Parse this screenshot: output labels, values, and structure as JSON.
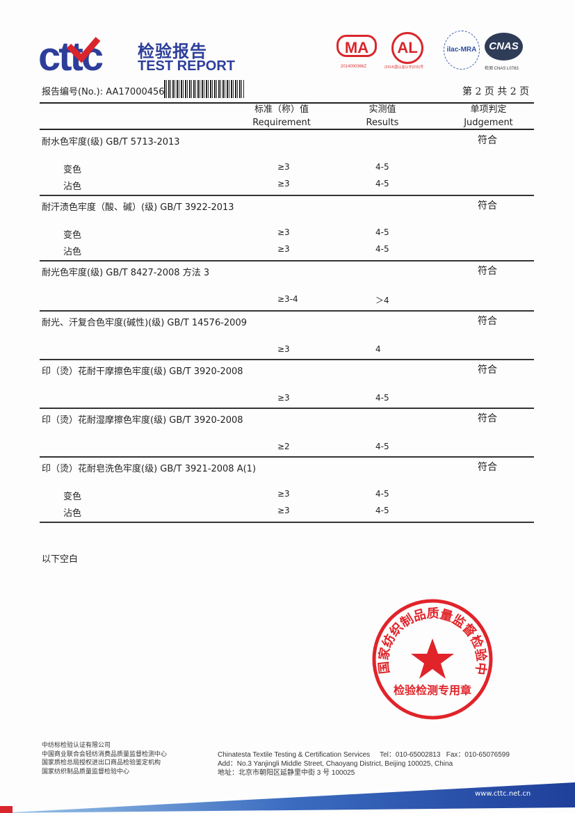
{
  "header": {
    "logo": "cttc",
    "logo_cn": "检验报告",
    "logo_en": "TEST REPORT",
    "certs": [
      {
        "mark": "MA",
        "code": "2014000366Z"
      },
      {
        "mark": "AL",
        "code": "(2014)国认监认字(016)号"
      },
      {
        "mark": "ilac-MRA",
        "code": ""
      },
      {
        "mark": "CNAS",
        "code": "检测 CNAS L0783"
      }
    ],
    "report_no_label": "报告编号(No.): AA17000456",
    "page_info": "第 2 页   共 2 页"
  },
  "columns": {
    "requirement_cn": "标准（称）值",
    "requirement_en": "Requirement",
    "results_cn": "实测值",
    "results_en": "Results",
    "judgement_cn": "单项判定",
    "judgement_en": "Judgement"
  },
  "sections": [
    {
      "title": "耐水色牢度(级)    GB/T 5713-2013",
      "judgement": "符合",
      "rows": [
        {
          "label": "变色",
          "req": "≥3",
          "res": "4-5"
        },
        {
          "label": "沾色",
          "req": "≥3",
          "res": "4-5"
        }
      ]
    },
    {
      "title": "耐汗渍色牢度（酸、碱）(级)    GB/T 3922-2013",
      "judgement": "符合",
      "rows": [
        {
          "label": "变色",
          "req": "≥3",
          "res": "4-5"
        },
        {
          "label": "沾色",
          "req": "≥3",
          "res": "4-5"
        }
      ]
    },
    {
      "title": "耐光色牢度(级)    GB/T 8427-2008  方法 3",
      "judgement": "符合",
      "rows": [
        {
          "label": "",
          "req": "≥3-4",
          "res": "＞4"
        }
      ]
    },
    {
      "title": "耐光、汗复合色牢度(碱性)(级)    GB/T 14576-2009",
      "judgement": "符合",
      "rows": [
        {
          "label": "",
          "req": "≥3",
          "res": "4"
        }
      ]
    },
    {
      "title": "印（烫）花耐干摩擦色牢度(级)    GB/T 3920-2008",
      "judgement": "符合",
      "rows": [
        {
          "label": "",
          "req": "≥3",
          "res": "4-5"
        }
      ]
    },
    {
      "title": "印（烫）花耐湿摩擦色牢度(级)    GB/T 3920-2008",
      "judgement": "符合",
      "rows": [
        {
          "label": "",
          "req": "≥2",
          "res": "4-5"
        }
      ]
    },
    {
      "title": "印（烫）花耐皂洗色牢度(级)    GB/T 3921-2008 A(1)",
      "judgement": "符合",
      "rows": [
        {
          "label": "变色",
          "req": "≥3",
          "res": "4-5"
        },
        {
          "label": "沾色",
          "req": "≥3",
          "res": "4-5"
        }
      ]
    }
  ],
  "blank_note": "以下空白",
  "stamp": {
    "ring_text": "国家纺织制品质量监督检验中心",
    "bottom_text": "检验检测专用章",
    "color": "#e0242a"
  },
  "footer": {
    "orgs": [
      "中纺标检验认证有限公司",
      "中国商业联合会轻纺消费品质量监督检测中心",
      "国家质检总局授权进出口商品检验鉴定机构",
      "国家纺织制品质量监督检验中心"
    ],
    "company": "Chinatesta Textile Testing & Certification Services",
    "tel": "Tel：010-65002813",
    "fax": "Fax：010-65076599",
    "address_en": "Add：No.3 Yanjingli Middle Street, Chaoyang District, Beijing 100025, China",
    "address_cn": "地址：北京市朝阳区延静里中街 3 号   100025",
    "website": "www.cttc.net.cn"
  },
  "colors": {
    "brand_blue": "#2d3e9a",
    "brand_red": "#d9262c"
  }
}
